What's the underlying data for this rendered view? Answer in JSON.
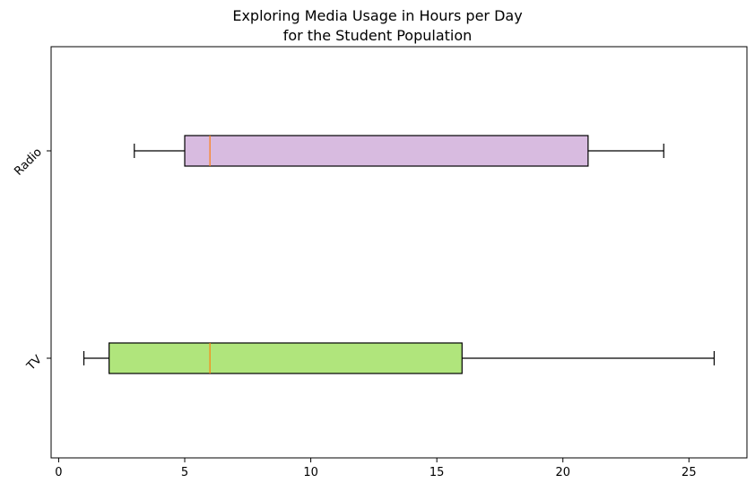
{
  "chart_data": {
    "type": "boxplot",
    "orientation": "horizontal",
    "title": [
      "Exploring Media Usage in Hours per Day",
      "for the Student Population"
    ],
    "xlabel": "",
    "ylabel": "",
    "xlim": [
      -0.3,
      27.3
    ],
    "xticks": [
      0,
      5,
      10,
      15,
      20,
      25
    ],
    "xtick_labels": [
      "0",
      "5",
      "10",
      "15",
      "20",
      "25"
    ],
    "grid": false,
    "categories": [
      "TV",
      "Radio"
    ],
    "boxes": [
      {
        "label": "TV",
        "whisker_low": 1,
        "q1": 2,
        "median": 6,
        "q3": 16,
        "whisker_high": 26,
        "color": "#b0e57c"
      },
      {
        "label": "Radio",
        "whisker_low": 3,
        "q1": 5,
        "median": 6,
        "q3": 21,
        "whisker_high": 24,
        "color": "#d8bbe0"
      }
    ],
    "median_color": "#ff7f0e",
    "edge_color": "#000000"
  }
}
